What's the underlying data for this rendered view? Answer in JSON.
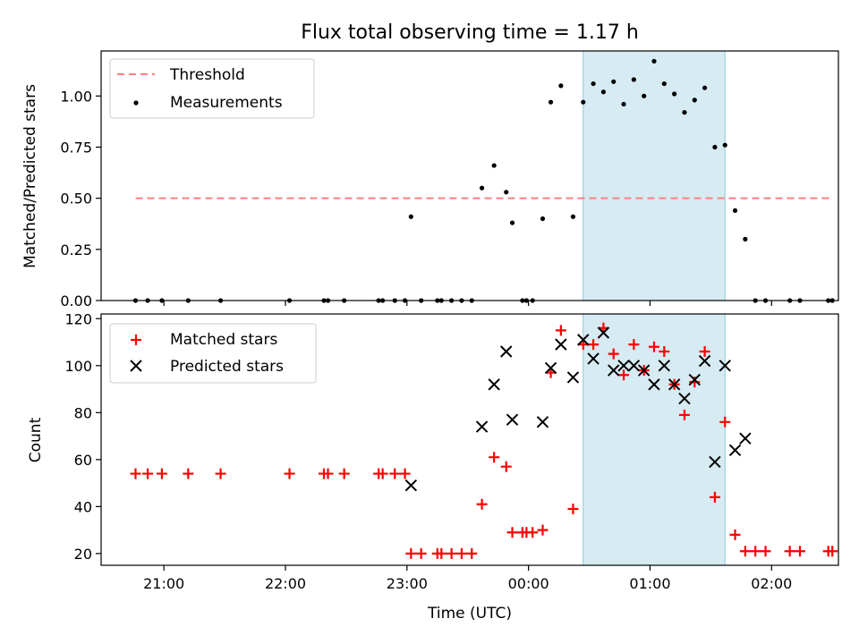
{
  "title": "Flux total observing time = 1.17 h",
  "xlabel": "Time (UTC)",
  "colors": {
    "threshold": "#ff7f7f",
    "matched": "#ff0000",
    "predicted": "#000000",
    "measurement": "#000000",
    "shade": "#add8e6"
  },
  "chart_data": [
    {
      "type": "scatter",
      "panel": "top",
      "ylabel": "Matched/Predicted stars",
      "xlim": [
        "20:29",
        "02:33"
      ],
      "ylim": [
        0,
        1.22
      ],
      "grid": false,
      "legend_position": "upper left",
      "xticks": [
        "21:00",
        "22:00",
        "23:00",
        "00:00",
        "01:00",
        "02:00"
      ],
      "yticks": [
        "0.00",
        "0.25",
        "0.50",
        "0.75",
        "1.00"
      ],
      "shaded_interval": [
        "00:27",
        "01:37"
      ],
      "threshold": {
        "label": "Threshold",
        "y": 0.5,
        "x_range": [
          "20:46",
          "02:29"
        ]
      },
      "series": [
        {
          "name": "Measurements",
          "x": [
            "20:46",
            "20:52",
            "20:59",
            "21:12",
            "21:28",
            "22:02",
            "22:19",
            "22:21",
            "22:29",
            "22:46",
            "22:48",
            "22:54",
            "22:59",
            "23:02",
            "23:07",
            "23:15",
            "23:17",
            "23:22",
            "23:27",
            "23:32",
            "23:37",
            "23:43",
            "23:49",
            "23:52",
            "23:57",
            "23:59",
            "00:02",
            "00:07",
            "00:11",
            "00:16",
            "00:22",
            "00:27",
            "00:32",
            "00:37",
            "00:42",
            "00:47",
            "00:52",
            "00:57",
            "01:02",
            "01:07",
            "01:12",
            "01:17",
            "01:22",
            "01:27",
            "01:32",
            "01:37",
            "01:42",
            "01:47",
            "01:52",
            "01:57",
            "02:09",
            "02:14",
            "02:28",
            "02:30"
          ],
          "y": [
            0,
            0,
            0,
            0,
            0,
            0,
            0,
            0,
            0,
            0,
            0,
            0,
            0,
            0.41,
            0,
            0,
            0,
            0,
            0,
            0,
            0.55,
            0.66,
            0.53,
            0.38,
            0,
            0,
            0,
            0.4,
            0.97,
            1.05,
            0.41,
            0.97,
            1.06,
            1.02,
            1.07,
            0.96,
            1.08,
            1.0,
            1.17,
            1.06,
            1.01,
            0.92,
            0.98,
            1.04,
            0.75,
            0.76,
            0.44,
            0.3,
            0,
            0,
            0,
            0,
            0,
            0
          ]
        }
      ]
    },
    {
      "type": "scatter",
      "panel": "bottom",
      "ylabel": "Count",
      "xlabel": "Time (UTC)",
      "xlim": [
        "20:29",
        "02:33"
      ],
      "ylim": [
        15,
        122
      ],
      "grid": false,
      "legend_position": "upper left",
      "xticks": [
        "21:00",
        "22:00",
        "23:00",
        "00:00",
        "01:00",
        "02:00"
      ],
      "yticks": [
        "20",
        "40",
        "60",
        "80",
        "100",
        "120"
      ],
      "shaded_interval": [
        "00:27",
        "01:37"
      ],
      "series": [
        {
          "name": "Matched stars",
          "marker": "+",
          "x": [
            "20:46",
            "20:52",
            "20:59",
            "21:12",
            "21:28",
            "22:02",
            "22:19",
            "22:21",
            "22:29",
            "22:46",
            "22:48",
            "22:54",
            "22:59",
            "23:02",
            "23:07",
            "23:15",
            "23:17",
            "23:22",
            "23:27",
            "23:32",
            "23:37",
            "23:43",
            "23:49",
            "23:52",
            "23:57",
            "23:59",
            "00:02",
            "00:07",
            "00:11",
            "00:16",
            "00:22",
            "00:27",
            "00:32",
            "00:37",
            "00:42",
            "00:47",
            "00:52",
            "00:57",
            "01:02",
            "01:07",
            "01:12",
            "01:17",
            "01:22",
            "01:27",
            "01:32",
            "01:37",
            "01:42",
            "01:47",
            "01:52",
            "01:57",
            "02:09",
            "02:14",
            "02:28",
            "02:30"
          ],
          "y": [
            54,
            54,
            54,
            54,
            54,
            54,
            54,
            54,
            54,
            54,
            54,
            54,
            54,
            20,
            20,
            20,
            20,
            20,
            20,
            20,
            41,
            61,
            57,
            29,
            29,
            29,
            29,
            30,
            97,
            115,
            39,
            109,
            109,
            116,
            105,
            96,
            109,
            98,
            108,
            106,
            92,
            79,
            93,
            106,
            44,
            76,
            28,
            21,
            21,
            21,
            21,
            21,
            21,
            21
          ]
        },
        {
          "name": "Predicted stars",
          "marker": "x",
          "x": [
            "23:02",
            "23:37",
            "23:43",
            "23:49",
            "23:52",
            "00:07",
            "00:11",
            "00:16",
            "00:22",
            "00:27",
            "00:32",
            "00:37",
            "00:42",
            "00:47",
            "00:52",
            "00:57",
            "01:02",
            "01:07",
            "01:12",
            "01:17",
            "01:22",
            "01:27",
            "01:32",
            "01:37",
            "01:42",
            "01:47"
          ],
          "y": [
            49,
            74,
            92,
            106,
            77,
            76,
            99,
            109,
            95,
            111,
            103,
            114,
            98,
            100,
            100,
            98,
            92,
            100,
            92,
            86,
            94,
            102,
            59,
            100,
            64,
            69
          ]
        }
      ]
    }
  ]
}
